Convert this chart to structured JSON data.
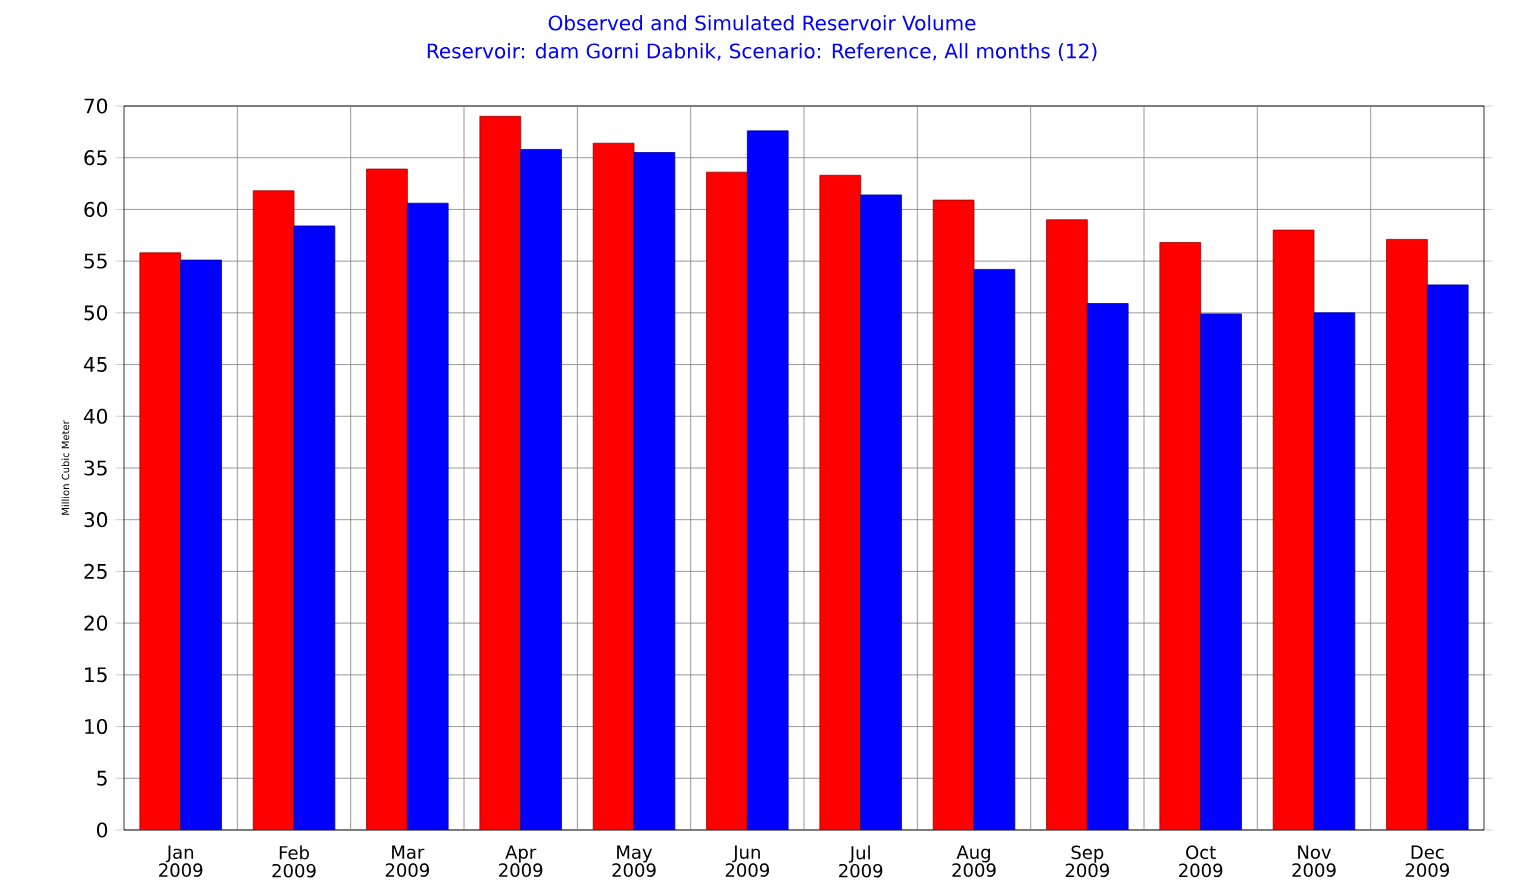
{
  "chart_data": {
    "type": "bar",
    "title": "Observed and Simulated Reservoir Volume",
    "subtitle": "Reservoir: dam Gorni Dabnik,  Scenario: Reference,  All months (12)",
    "ylabel": "Million Cubic Meter",
    "categories": [
      "Jan 2009",
      "Feb 2009",
      "Mar 2009",
      "Apr 2009",
      "May 2009",
      "Jun 2009",
      "Jul 2009",
      "Aug 2009",
      "Sep 2009",
      "Oct 2009",
      "Nov 2009",
      "Dec 2009"
    ],
    "series": [
      {
        "color": "#ff0000",
        "values": [
          55.8,
          61.8,
          63.9,
          69.0,
          66.4,
          63.6,
          63.3,
          60.9,
          59.0,
          56.8,
          58.0,
          57.1
        ]
      },
      {
        "color": "#0000ff",
        "values": [
          55.1,
          58.4,
          60.6,
          65.8,
          65.5,
          67.6,
          61.4,
          54.2,
          50.9,
          49.9,
          50.0,
          52.7
        ]
      }
    ],
    "ylim": [
      0,
      70
    ],
    "yticks": [
      0,
      5,
      10,
      15,
      20,
      25,
      30,
      35,
      40,
      45,
      50,
      55,
      60,
      65,
      70
    ],
    "grid": true
  }
}
